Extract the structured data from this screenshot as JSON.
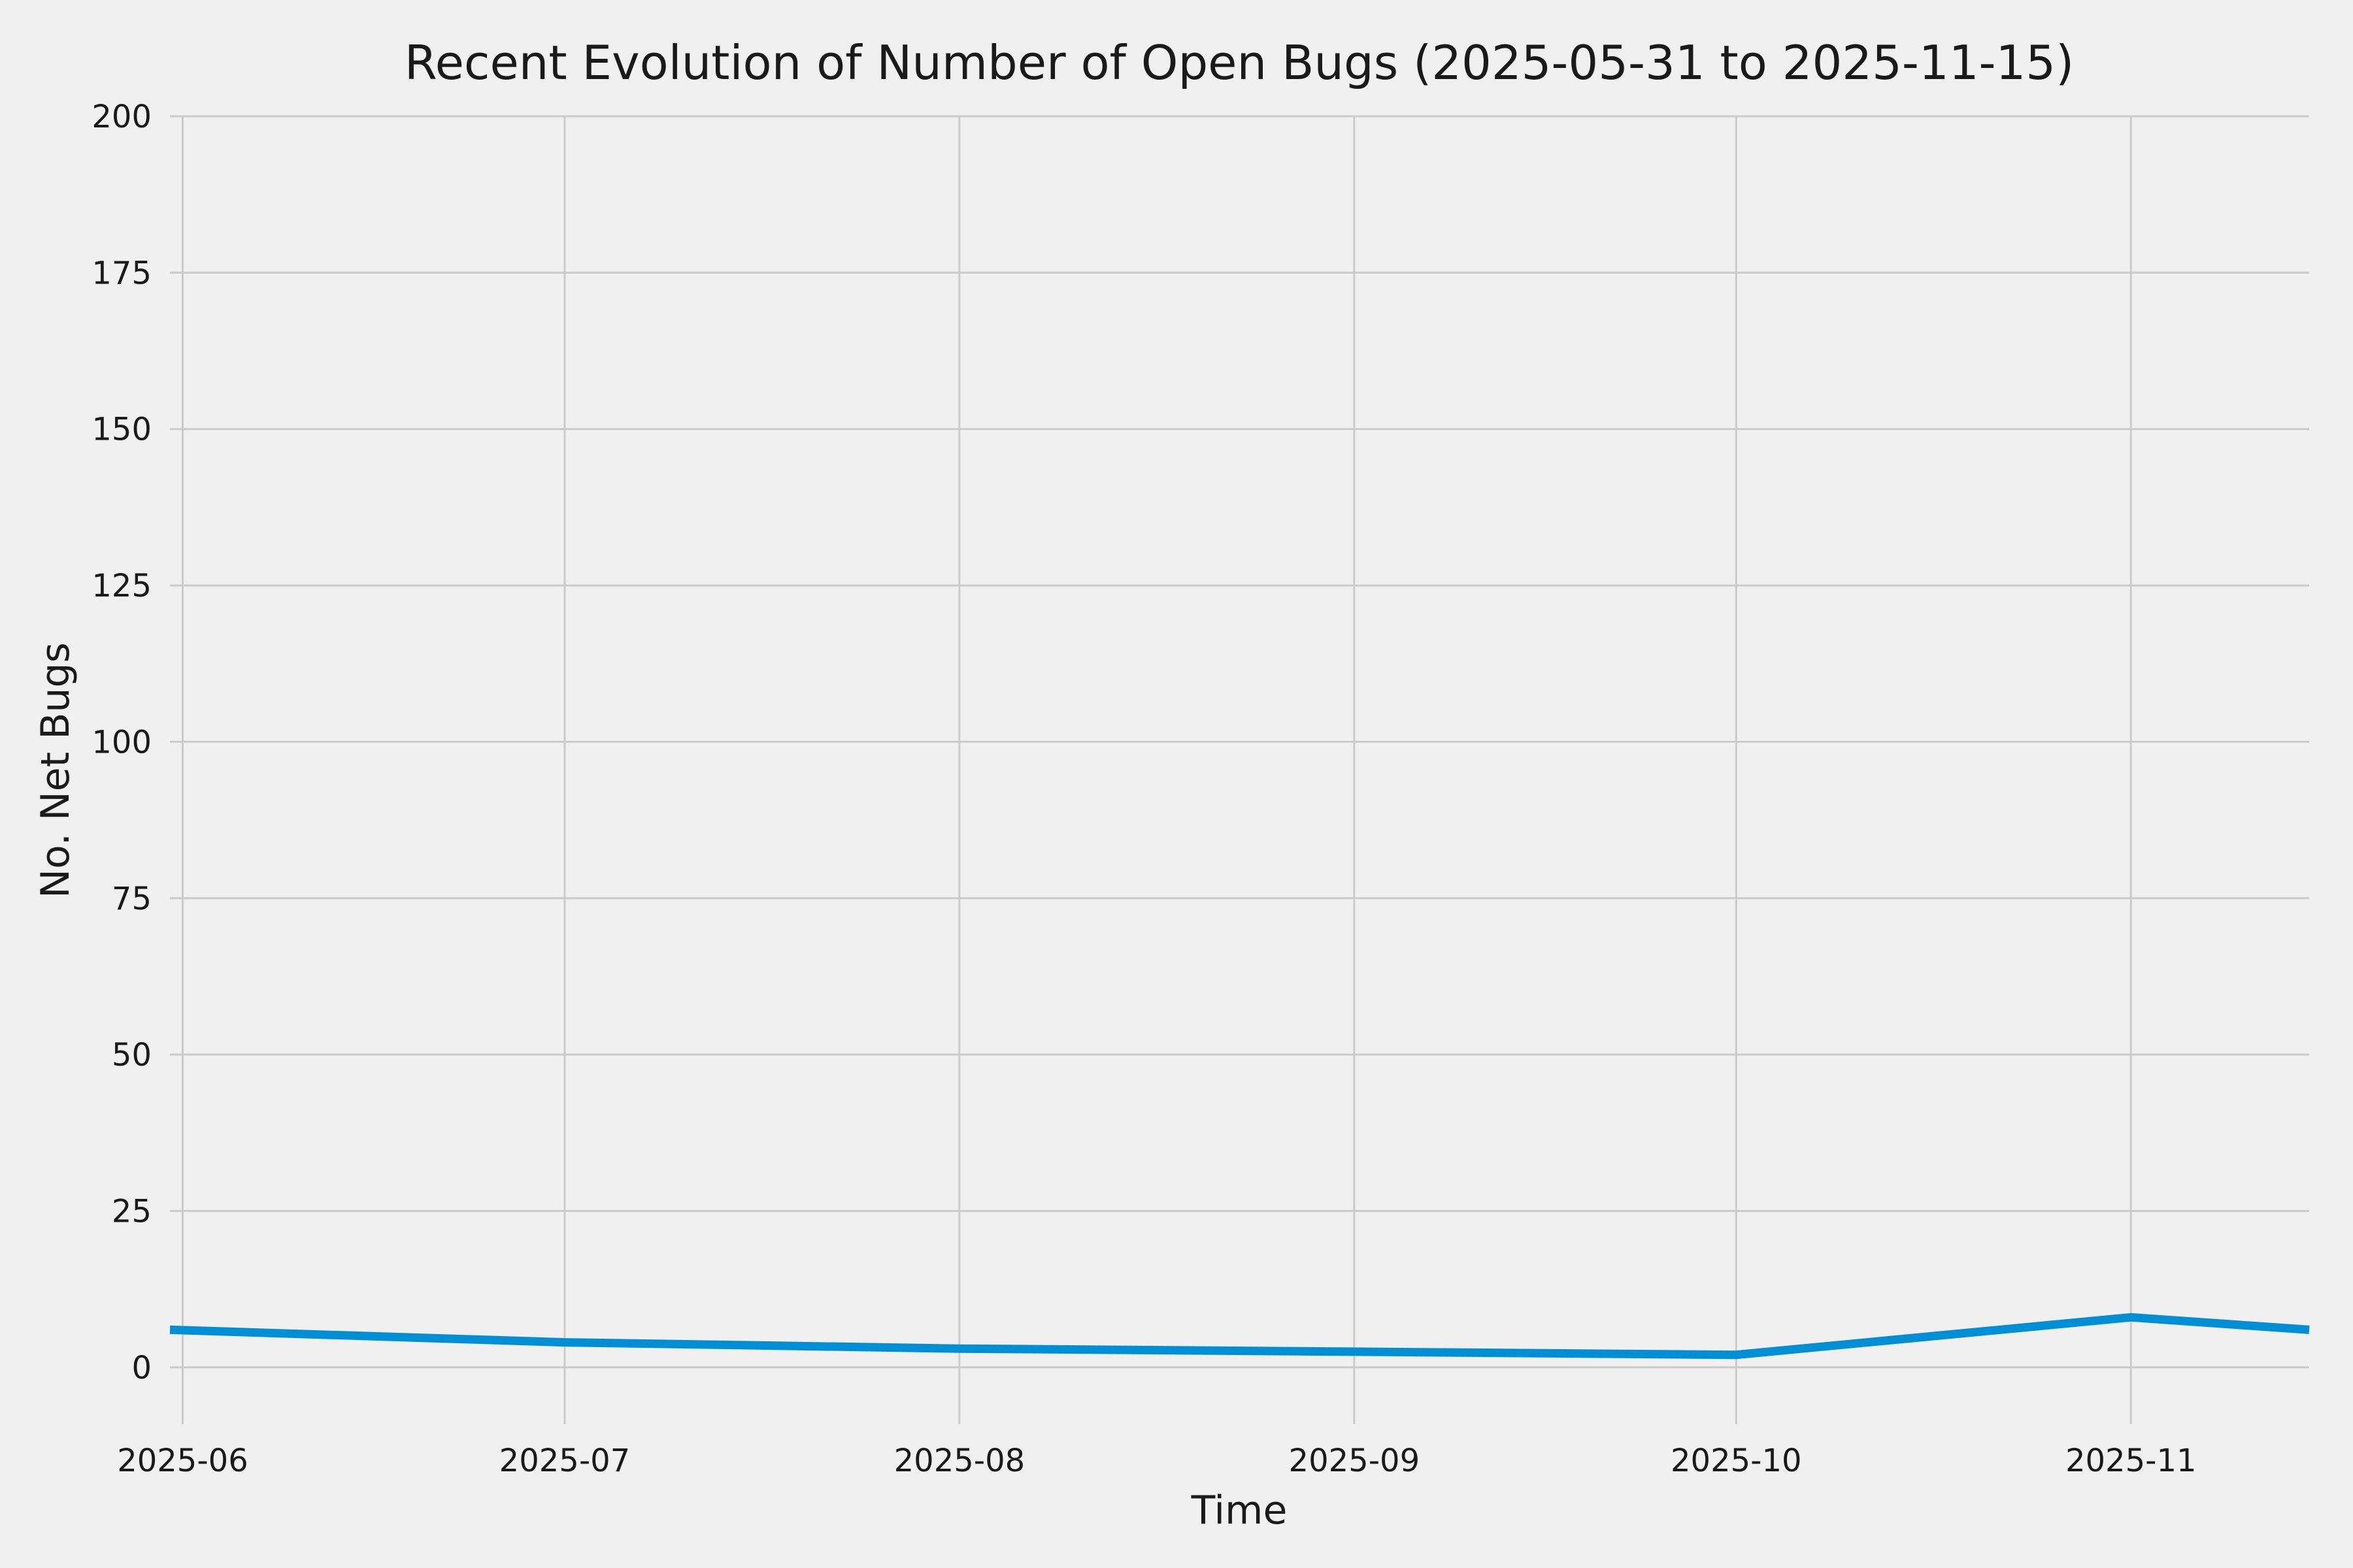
{
  "figure": {
    "background_color": "#f0f0f0",
    "grid_color": "#cbcbcb",
    "text_color": "#1a1a1a"
  },
  "chart_data": {
    "type": "line",
    "title": "Recent Evolution of Number of Open Bugs (2025-05-31 to 2025-11-15)",
    "xlabel": "Time",
    "ylabel": "No. Net Bugs",
    "date_range": [
      "2025-05-31",
      "2025-11-15"
    ],
    "x_span_days": 168,
    "grid": true,
    "legend": "none",
    "ylim": [
      -9.1,
      200
    ],
    "y_ticks": [
      0,
      25,
      50,
      75,
      100,
      125,
      150,
      175,
      200
    ],
    "x_ticks": [
      {
        "label": "2025-06",
        "day": 1
      },
      {
        "label": "2025-07",
        "day": 31
      },
      {
        "label": "2025-08",
        "day": 62
      },
      {
        "label": "2025-09",
        "day": 93
      },
      {
        "label": "2025-10",
        "day": 123
      },
      {
        "label": "2025-11",
        "day": 154
      }
    ],
    "series": [
      {
        "name": "open-bugs",
        "color": "#008fd5",
        "points": [
          {
            "date": "2025-05-31",
            "day": 0,
            "value": 6
          },
          {
            "date": "2025-07-01",
            "day": 31,
            "value": 4
          },
          {
            "date": "2025-08-01",
            "day": 62,
            "value": 3
          },
          {
            "date": "2025-09-01",
            "day": 93,
            "value": 2.5
          },
          {
            "date": "2025-10-01",
            "day": 123,
            "value": 2
          },
          {
            "date": "2025-11-01",
            "day": 154,
            "value": 8
          },
          {
            "date": "2025-11-15",
            "day": 168,
            "value": 6
          }
        ]
      }
    ]
  }
}
